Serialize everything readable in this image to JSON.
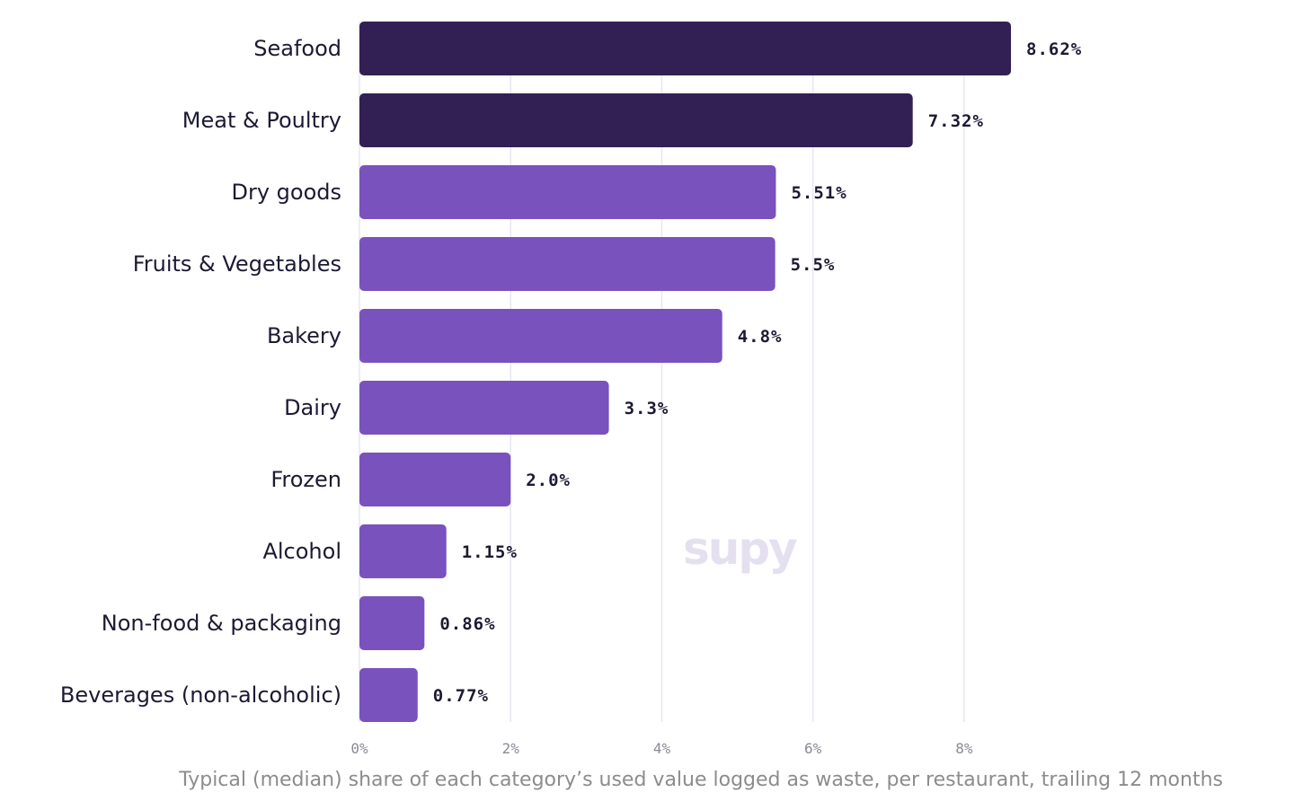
{
  "chart_data": {
    "type": "bar",
    "orientation": "horizontal",
    "categories": [
      "Seafood",
      "Meat & Poultry",
      "Dry goods",
      "Fruits & Vegetables",
      "Bakery",
      "Dairy",
      "Frozen",
      "Alcohol",
      "Non-food & packaging",
      "Beverages (non-alcoholic)"
    ],
    "values": [
      8.62,
      7.32,
      5.51,
      5.5,
      4.8,
      3.3,
      2.0,
      1.15,
      0.86,
      0.77
    ],
    "value_labels": [
      "8.62%",
      "7.32%",
      "5.51%",
      "5.5%",
      "4.8%",
      "3.3%",
      "2.0%",
      "1.15%",
      "0.86%",
      "0.77%"
    ],
    "highlighted": [
      true,
      true,
      false,
      false,
      false,
      false,
      false,
      false,
      false,
      false
    ],
    "xticks": [
      0,
      2,
      4,
      6,
      8
    ],
    "xtick_labels": [
      "0%",
      "2%",
      "4%",
      "6%",
      "8%"
    ],
    "xlim": [
      0,
      10.7
    ],
    "xlabel": "Typical (median) share of each category’s used value logged as waste, per restaurant, trailing 12 months",
    "title": "",
    "grid": "vertical",
    "watermark": "supy",
    "colors": {
      "highlight": "#321f54",
      "bar": "#7952bd",
      "grid": "#e8e6f3",
      "text": "#1c1a33",
      "muted": "#8c8c8c",
      "watermark": "#e4e0f0"
    }
  }
}
